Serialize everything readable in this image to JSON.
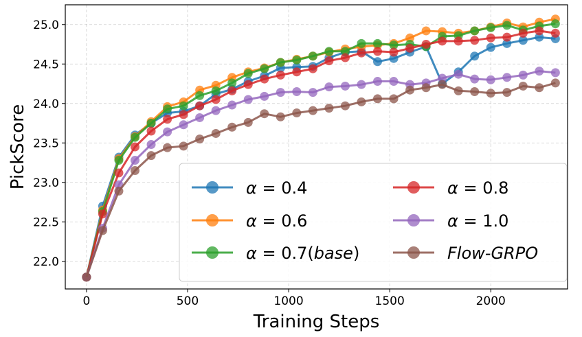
{
  "chart_data": {
    "type": "line",
    "xlabel": "Training Steps",
    "ylabel": "PickScore",
    "xlim": [
      -105,
      2380
    ],
    "ylim": [
      21.65,
      25.25
    ],
    "xticks": [
      0,
      500,
      1000,
      1500,
      2000
    ],
    "yticks": [
      22.0,
      22.5,
      23.0,
      23.5,
      24.0,
      24.5,
      25.0
    ],
    "ytick_labels": [
      "22.0",
      "22.5",
      "23.0",
      "23.5",
      "24.0",
      "24.5",
      "25.0"
    ],
    "grid": true,
    "legend_position": "lower-right",
    "legend_columns": 2,
    "x": [
      0,
      80,
      160,
      240,
      320,
      400,
      480,
      560,
      640,
      720,
      800,
      880,
      960,
      1040,
      1120,
      1200,
      1280,
      1360,
      1440,
      1520,
      1600,
      1680,
      1760,
      1840,
      1920,
      2000,
      2080,
      2160,
      2240,
      2320
    ],
    "series": [
      {
        "name": "α = 0.4",
        "legend_parts": [
          {
            "text": "α",
            "italic": true
          },
          {
            "text": " = 0.4",
            "italic": false
          }
        ],
        "color": "#1f77b4",
        "values": [
          21.8,
          22.7,
          23.32,
          23.6,
          23.75,
          23.88,
          23.9,
          23.97,
          24.12,
          24.18,
          24.28,
          24.35,
          24.45,
          24.46,
          24.47,
          24.58,
          24.65,
          24.66,
          24.53,
          24.57,
          24.65,
          24.72,
          24.25,
          24.4,
          24.6,
          24.71,
          24.76,
          24.8,
          24.84,
          24.82
        ]
      },
      {
        "name": "α = 0.6",
        "legend_parts": [
          {
            "text": "α",
            "italic": true
          },
          {
            "text": " = 0.6",
            "italic": false
          }
        ],
        "color": "#ff7f0e",
        "values": [
          21.8,
          22.65,
          23.3,
          23.58,
          23.77,
          23.96,
          24.02,
          24.17,
          24.23,
          24.33,
          24.4,
          24.45,
          24.52,
          24.56,
          24.6,
          24.65,
          24.69,
          24.72,
          24.74,
          24.76,
          24.83,
          24.92,
          24.91,
          24.89,
          24.92,
          24.97,
          25.02,
          24.97,
          25.03,
          25.07
        ]
      },
      {
        "name": "α = 0.7(base)",
        "legend_parts": [
          {
            "text": "α",
            "italic": true
          },
          {
            "text": " = 0.7(",
            "italic": false
          },
          {
            "text": "base",
            "italic": true
          },
          {
            "text": ")",
            "italic": false
          }
        ],
        "color": "#2ca02c",
        "values": [
          21.8,
          22.63,
          23.28,
          23.57,
          23.75,
          23.93,
          23.97,
          24.1,
          24.16,
          24.26,
          24.38,
          24.44,
          24.52,
          24.55,
          24.6,
          24.66,
          24.66,
          24.76,
          24.76,
          24.74,
          24.75,
          24.72,
          24.85,
          24.86,
          24.92,
          24.96,
          24.99,
          24.93,
          24.98,
          25.01
        ]
      },
      {
        "name": "α = 0.8",
        "legend_parts": [
          {
            "text": "α",
            "italic": true
          },
          {
            "text": " = 0.8",
            "italic": false
          }
        ],
        "color": "#d62728",
        "values": [
          21.8,
          22.6,
          23.12,
          23.45,
          23.65,
          23.8,
          23.86,
          23.97,
          24.05,
          24.16,
          24.24,
          24.31,
          24.36,
          24.4,
          24.44,
          24.54,
          24.58,
          24.64,
          24.66,
          24.65,
          24.7,
          24.75,
          24.79,
          24.79,
          24.8,
          24.83,
          24.84,
          24.89,
          24.92,
          24.89
        ]
      },
      {
        "name": "α = 1.0",
        "legend_parts": [
          {
            "text": "α",
            "italic": true
          },
          {
            "text": " = 1.0",
            "italic": false
          }
        ],
        "color": "#9467bd",
        "values": [
          21.8,
          22.42,
          22.97,
          23.28,
          23.48,
          23.64,
          23.73,
          23.82,
          23.91,
          23.98,
          24.05,
          24.09,
          24.14,
          24.15,
          24.14,
          24.21,
          24.22,
          24.24,
          24.28,
          24.28,
          24.24,
          24.26,
          24.32,
          24.37,
          24.31,
          24.3,
          24.33,
          24.36,
          24.41,
          24.39
        ]
      },
      {
        "name": "Flow-GRPO",
        "legend_parts": [
          {
            "text": "Flow-GRPO",
            "italic": true
          }
        ],
        "color": "#8c564b",
        "values": [
          21.8,
          22.39,
          22.89,
          23.15,
          23.34,
          23.44,
          23.46,
          23.55,
          23.62,
          23.7,
          23.76,
          23.87,
          23.83,
          23.88,
          23.91,
          23.94,
          23.97,
          24.02,
          24.06,
          24.06,
          24.17,
          24.2,
          24.24,
          24.16,
          24.15,
          24.13,
          24.14,
          24.22,
          24.2,
          24.26
        ]
      }
    ]
  }
}
